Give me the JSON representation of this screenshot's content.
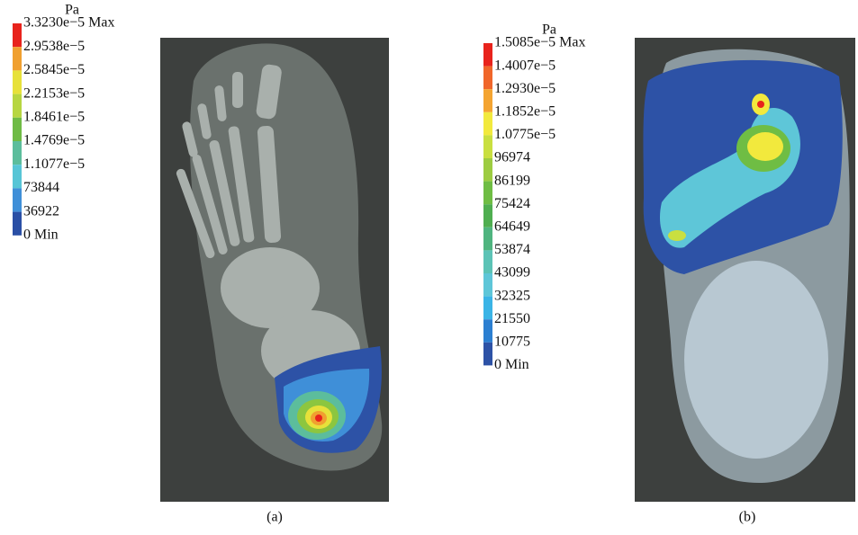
{
  "panels": [
    {
      "unit": "Pa",
      "caption": "(a)",
      "labels": [
        "3.3230e−5 Max",
        "2.9538e−5",
        "2.5845e−5",
        "2.2153e−5",
        "1.8461e−5",
        "1.4769e−5",
        "1.1077e−5",
        "73844",
        "36922",
        "0 Min"
      ],
      "colors": [
        "#e8231c",
        "#f0a030",
        "#e7e13a",
        "#b7d641",
        "#6fbb45",
        "#5cbd9c",
        "#57c5d6",
        "#3f8fd8",
        "#2a4fa5"
      ]
    },
    {
      "unit": "Pa",
      "caption": "(b)",
      "labels": [
        "1.5085e−5 Max",
        "1.4007e−5",
        "1.2930e−5",
        "1.1852e−5",
        "1.0775e−5",
        "96974",
        "86199",
        "75424",
        "64649",
        "53874",
        "43099",
        "32325",
        "21550",
        "10775",
        "0 Min"
      ],
      "colors": [
        "#e8231c",
        "#f0662a",
        "#f4a431",
        "#f2e93d",
        "#c9df40",
        "#9dcc41",
        "#6fbd44",
        "#4fae50",
        "#4fb47f",
        "#5cc3b6",
        "#5ec6d8",
        "#3ab4e6",
        "#2b7fd1",
        "#2d52a6"
      ]
    }
  ]
}
